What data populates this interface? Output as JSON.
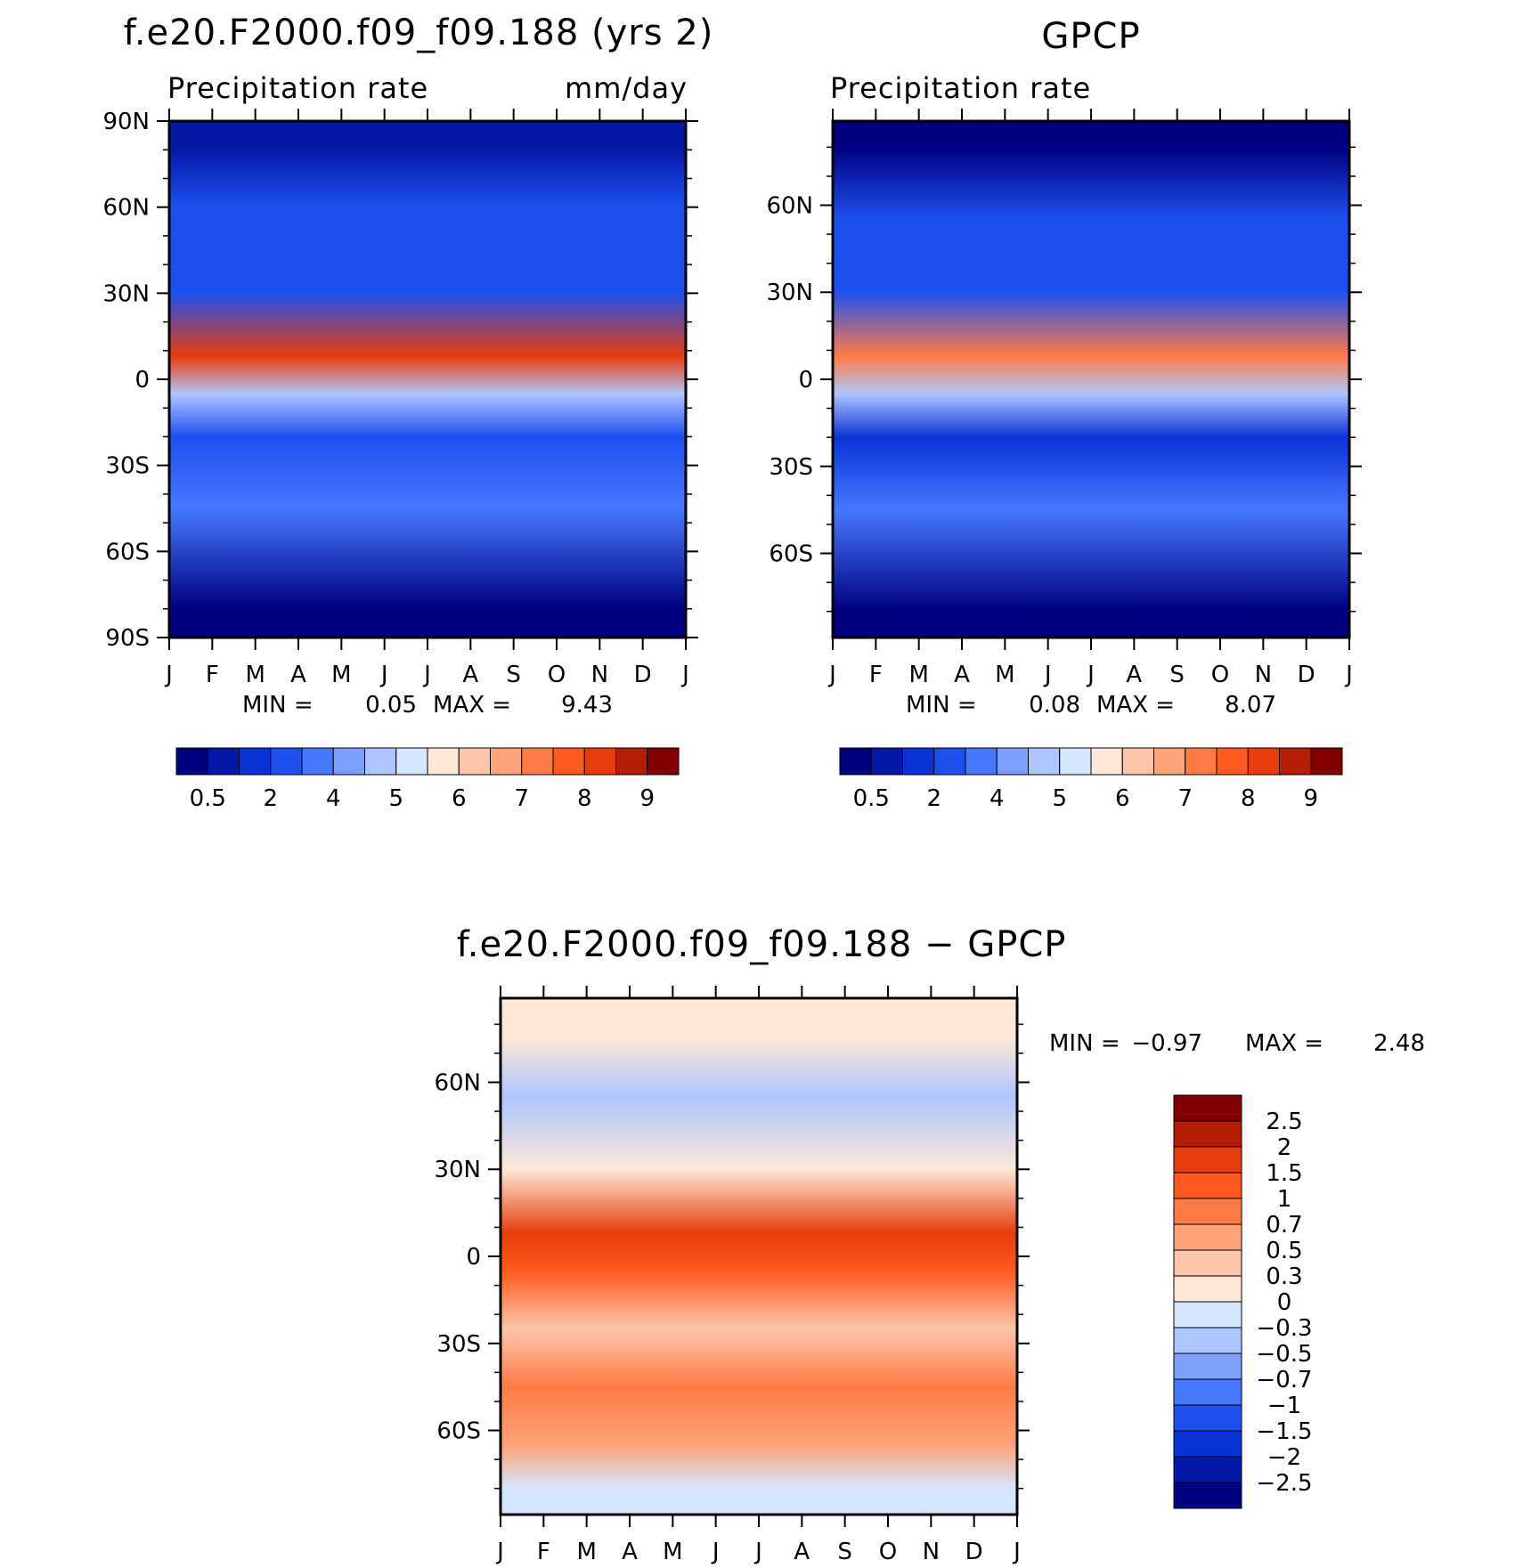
{
  "chart_data": [
    {
      "type": "heatmap",
      "title": "f.e20.F2000.f09_f09.188 (yrs 2)",
      "subtitle_left": "Precipitation rate",
      "subtitle_right": "mm/day",
      "x_ticks": [
        "J",
        "F",
        "M",
        "A",
        "M",
        "J",
        "J",
        "A",
        "S",
        "O",
        "N",
        "D",
        "J"
      ],
      "y_ticks": [
        "90N",
        "60N",
        "30N",
        "0",
        "30S",
        "60S",
        "90S"
      ],
      "ylim": [
        -90,
        90
      ],
      "min_label": "MIN =",
      "min_value": "0.05",
      "max_label": "MAX =",
      "max_value": "9.43",
      "colorbar_labels": [
        "0.5",
        "2",
        "4",
        "5",
        "6",
        "7",
        "8",
        "9"
      ],
      "colors": [
        "#000080",
        "#0519a8",
        "#0a32d6",
        "#1e50f0",
        "#4678ff",
        "#7d9fff",
        "#afc5ff",
        "#d7e6ff",
        "#fde7d6",
        "#fcc6aa",
        "#fca377",
        "#ff7b45",
        "#ff5a1e",
        "#e83c0a",
        "#b41e05",
        "#820000"
      ],
      "zones": [
        {
          "lat": 80,
          "value": 1.0
        },
        {
          "lat": 60,
          "value": 2.5
        },
        {
          "lat": 30,
          "value": 2.8
        },
        {
          "lat": 8,
          "value": 8.8
        },
        {
          "lat": -5,
          "value": 5.5
        },
        {
          "lat": -20,
          "value": 2.6
        },
        {
          "lat": -45,
          "value": 3.6
        },
        {
          "lat": -80,
          "value": 0.5
        }
      ]
    },
    {
      "type": "heatmap",
      "title": "GPCP",
      "subtitle_left": "Precipitation rate",
      "subtitle_right": "",
      "x_ticks": [
        "J",
        "F",
        "M",
        "A",
        "M",
        "J",
        "J",
        "A",
        "S",
        "O",
        "N",
        "D",
        "J"
      ],
      "y_ticks": [
        "60N",
        "30N",
        "0",
        "30S",
        "60S"
      ],
      "ylim": [
        -89,
        89
      ],
      "min_label": "MIN =",
      "min_value": "0.08",
      "max_label": "MAX =",
      "max_value": "8.07",
      "colorbar_labels": [
        "0.5",
        "2",
        "4",
        "5",
        "6",
        "7",
        "8",
        "9"
      ],
      "colors": [
        "#000080",
        "#0519a8",
        "#0a32d6",
        "#1e50f0",
        "#4678ff",
        "#7d9fff",
        "#afc5ff",
        "#d7e6ff",
        "#fde7d6",
        "#fcc6aa",
        "#fca377",
        "#ff7b45",
        "#ff5a1e",
        "#e83c0a",
        "#b41e05",
        "#820000"
      ],
      "zones": [
        {
          "lat": 80,
          "value": 0.4
        },
        {
          "lat": 55,
          "value": 2.2
        },
        {
          "lat": 30,
          "value": 2.3
        },
        {
          "lat": 8,
          "value": 7.8
        },
        {
          "lat": -5,
          "value": 5.2
        },
        {
          "lat": -20,
          "value": 1.8
        },
        {
          "lat": -45,
          "value": 3.2
        },
        {
          "lat": -80,
          "value": 0.4
        }
      ]
    },
    {
      "type": "heatmap",
      "title": "f.e20.F2000.f09_f09.188 − GPCP",
      "x_ticks": [
        "J",
        "F",
        "M",
        "A",
        "M",
        "J",
        "J",
        "A",
        "S",
        "O",
        "N",
        "D",
        "J"
      ],
      "y_ticks": [
        "60N",
        "30N",
        "0",
        "30S",
        "60S"
      ],
      "ylim": [
        -89,
        89
      ],
      "min_label": "MIN =",
      "min_value": "−0.97",
      "max_label": "MAX =",
      "max_value": "2.48",
      "colorbar_labels": [
        "2.5",
        "2",
        "1.5",
        "1",
        "0.7",
        "0.5",
        "0.3",
        "0",
        "−0.3",
        "−0.5",
        "−0.7",
        "−1",
        "−1.5",
        "−2",
        "−2.5"
      ],
      "colors": [
        "#820000",
        "#b41e05",
        "#e83c0a",
        "#ff5a1e",
        "#ff7b45",
        "#fca377",
        "#fcc6aa",
        "#fde7d6",
        "#d7e6ff",
        "#afc5ff",
        "#7d9fff",
        "#4678ff",
        "#1e50f0",
        "#0a32d6",
        "#0519a8",
        "#000080"
      ],
      "zones": [
        {
          "lat": 75,
          "value": 0.3
        },
        {
          "lat": 55,
          "value": -0.3
        },
        {
          "lat": 30,
          "value": 0.1
        },
        {
          "lat": 8,
          "value": 2.0
        },
        {
          "lat": -5,
          "value": 1.2
        },
        {
          "lat": -25,
          "value": 0.4
        },
        {
          "lat": -45,
          "value": 0.8
        },
        {
          "lat": -65,
          "value": 0.6
        },
        {
          "lat": -80,
          "value": 0.0
        }
      ]
    }
  ]
}
